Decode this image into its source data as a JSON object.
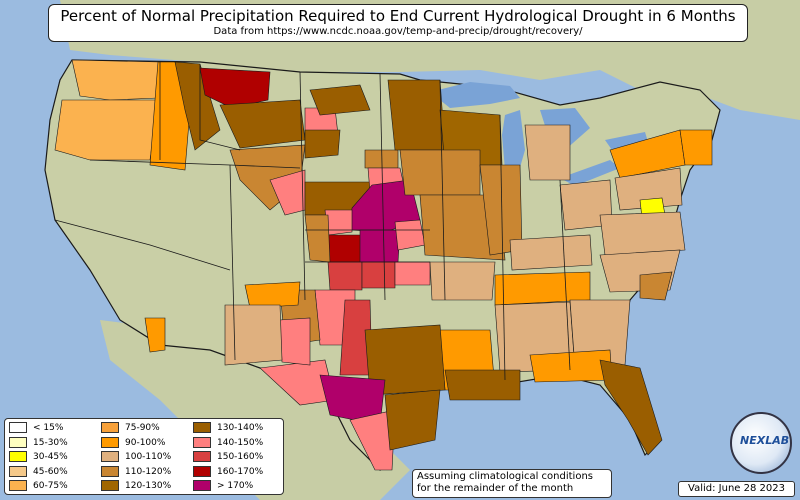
{
  "title": "Percent of Normal Precipitation Required to End Current Hydrological Drought in 6 Months",
  "subtitle": "Data from https://www.ncdc.noaa.gov/temp-and-precip/drought/recovery/",
  "note": {
    "line1": "Assuming climatological conditions",
    "line2": "for the remainder of the month"
  },
  "valid": "Valid: June 28 2023",
  "logo_text": "NEXLAB",
  "legend": [
    {
      "label": "< 15%",
      "color": "#ffffff"
    },
    {
      "label": "15-30%",
      "color": "#ffffc0"
    },
    {
      "label": "30-45%",
      "color": "#ffff00"
    },
    {
      "label": "45-60%",
      "color": "#f5c98a"
    },
    {
      "label": "60-75%",
      "color": "#fbb24f"
    },
    {
      "label": "75-90%",
      "color": "#f7a13b"
    },
    {
      "label": "90-100%",
      "color": "#ff9a00"
    },
    {
      "label": "100-110%",
      "color": "#dfb07f"
    },
    {
      "label": "110-120%",
      "color": "#c98632"
    },
    {
      "label": "120-130%",
      "color": "#a06600"
    },
    {
      "label": "130-140%",
      "color": "#9a5e00"
    },
    {
      "label": "140-150%",
      "color": "#ff7f7f"
    },
    {
      "label": "150-160%",
      "color": "#d84040"
    },
    {
      "label": "160-170%",
      "color": "#b00000"
    },
    {
      "label": "> 170%",
      "color": "#b0006a"
    }
  ],
  "colors": {
    "ocean": "#9bbbe0",
    "land": "#c9cfa6",
    "border": "#1a1a1a"
  }
}
